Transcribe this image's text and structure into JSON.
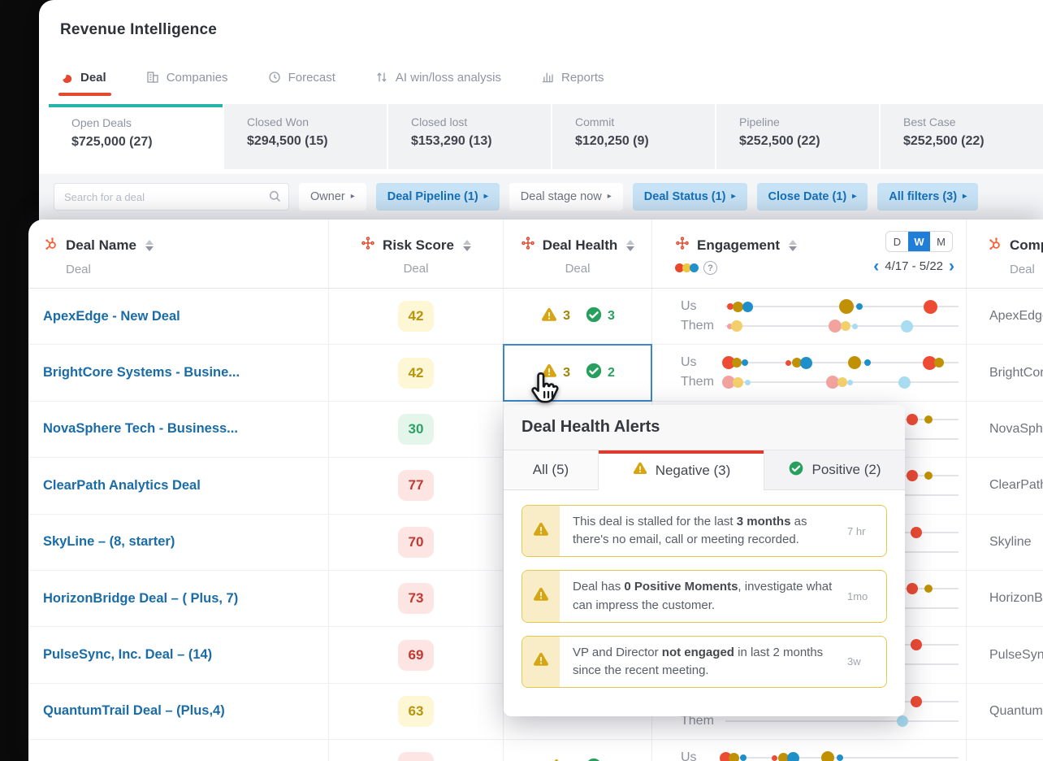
{
  "app": {
    "title": "Revenue Intelligence"
  },
  "nav": {
    "tabs": [
      {
        "label": "Deal",
        "icon": "gong-logo-icon",
        "active": true
      },
      {
        "label": "Companies",
        "icon": "companies-icon",
        "active": false
      },
      {
        "label": "Forecast",
        "icon": "forecast-icon",
        "active": false
      },
      {
        "label": "AI win/loss analysis",
        "icon": "ai-winloss-icon",
        "active": false
      },
      {
        "label": "Reports",
        "icon": "reports-icon",
        "active": false
      }
    ]
  },
  "summary": {
    "cards": [
      {
        "label": "Open Deals",
        "value": "$725,000 (27)",
        "active": true
      },
      {
        "label": "Closed Won",
        "value": "$294,500 (15)",
        "active": false
      },
      {
        "label": "Closed lost",
        "value": "$153,290 (13)",
        "active": false
      },
      {
        "label": "Commit",
        "value": "$120,250 (9)",
        "active": false
      },
      {
        "label": "Pipeline",
        "value": "$252,500 (22)",
        "active": false
      },
      {
        "label": "Best Case",
        "value": "$252,500 (22)",
        "active": false
      }
    ]
  },
  "filters": {
    "search_placeholder": "Search for a deal",
    "buttons": [
      {
        "label": "Owner",
        "active": false
      },
      {
        "label": "Deal Pipeline (1)",
        "active": true
      },
      {
        "label": "Deal stage now",
        "active": false
      },
      {
        "label": "Deal Status (1)",
        "active": true
      },
      {
        "label": "Close Date (1)",
        "active": true
      },
      {
        "label": "All filters (3)",
        "active": true
      }
    ]
  },
  "table": {
    "columns": [
      {
        "label": "Deal Name",
        "source": "Deal"
      },
      {
        "label": "Risk Score",
        "source": "Deal"
      },
      {
        "label": "Deal Health",
        "source": "Deal"
      },
      {
        "label": "Engagement",
        "source": ""
      },
      {
        "label": "Comp",
        "source": "Deal"
      }
    ],
    "engagement_header": {
      "legend_colors": [
        "#e8462e",
        "#f0c63c",
        "#2191cb"
      ],
      "toggle_options": [
        "D",
        "W",
        "M"
      ],
      "toggle_selected": "W",
      "date_range": "4/17 - 5/22"
    },
    "engagement_labels": {
      "us": "Us",
      "them": "Them"
    },
    "dot_colors": {
      "red": "#ee4b35",
      "olive": "#c09104",
      "blue": "#1f8fc9",
      "pink": "#f2a3a0",
      "yellow": "#f3cf6b",
      "lblue": "#a9dcf1"
    },
    "rows": [
      {
        "name": "ApexEdge - New Deal",
        "risk": {
          "value": "42",
          "tone": "yellow"
        },
        "health": {
          "neg": "3",
          "pos": "3",
          "selected": false
        },
        "eng": {
          "us": [
            [
              0.02,
              "red",
              8
            ],
            [
              0.055,
              "olive",
              13
            ],
            [
              0.095,
              "blue",
              13
            ],
            [
              0.52,
              "olive",
              18
            ],
            [
              0.575,
              "blue",
              8
            ],
            [
              0.88,
              "red",
              17
            ]
          ],
          "them": [
            [
              0.02,
              "pink",
              7
            ],
            [
              0.05,
              "yellow",
              14
            ],
            [
              0.47,
              "pink",
              16
            ],
            [
              0.515,
              "yellow",
              12
            ],
            [
              0.555,
              "lblue",
              7
            ],
            [
              0.78,
              "lblue",
              15
            ]
          ]
        },
        "company": "ApexEdge"
      },
      {
        "name": "BrightCore Systems - Busine...",
        "risk": {
          "value": "42",
          "tone": "yellow"
        },
        "health": {
          "neg": "3",
          "pos": "2",
          "selected": true
        },
        "eng": {
          "us": [
            [
              0.015,
              "red",
              16
            ],
            [
              0.05,
              "olive",
              12
            ],
            [
              0.085,
              "blue",
              8
            ],
            [
              0.27,
              "red",
              7
            ],
            [
              0.305,
              "olive",
              12
            ],
            [
              0.345,
              "blue",
              15
            ],
            [
              0.555,
              "olive",
              16
            ],
            [
              0.61,
              "blue",
              8
            ],
            [
              0.875,
              "red",
              17
            ],
            [
              0.915,
              "olive",
              12
            ]
          ],
          "them": [
            [
              0.015,
              "pink",
              16
            ],
            [
              0.055,
              "yellow",
              13
            ],
            [
              0.095,
              "lblue",
              7
            ],
            [
              0.46,
              "pink",
              16
            ],
            [
              0.5,
              "yellow",
              12
            ],
            [
              0.535,
              "lblue",
              7
            ],
            [
              0.77,
              "lblue",
              15
            ]
          ]
        },
        "company": "BrightCor"
      },
      {
        "name": "NovaSphere Tech - Business...",
        "risk": {
          "value": "30",
          "tone": "green"
        },
        "health": null,
        "eng": {
          "us": [
            [
              0.8,
              "red",
              14
            ],
            [
              0.87,
              "olive",
              10
            ]
          ],
          "them": []
        },
        "company": "NovaSphe"
      },
      {
        "name": "ClearPath Analytics Deal",
        "risk": {
          "value": "77",
          "tone": "red"
        },
        "health": null,
        "eng": {
          "us": [
            [
              0.8,
              "red",
              14
            ],
            [
              0.87,
              "olive",
              10
            ]
          ],
          "them": []
        },
        "company": "ClearPath"
      },
      {
        "name": "SkyLine – (8, starter)",
        "risk": {
          "value": "70",
          "tone": "red"
        },
        "health": null,
        "eng": {
          "us": [
            [
              0.82,
              "red",
              14
            ]
          ],
          "them": []
        },
        "company": "Skyline"
      },
      {
        "name": "HorizonBridge Deal – ( Plus, 7)",
        "risk": {
          "value": "73",
          "tone": "red"
        },
        "health": null,
        "eng": {
          "us": [
            [
              0.8,
              "red",
              14
            ],
            [
              0.87,
              "olive",
              10
            ]
          ],
          "them": []
        },
        "company": "HorizonB"
      },
      {
        "name": "PulseSync, Inc. Deal – (14)",
        "risk": {
          "value": "69",
          "tone": "red"
        },
        "health": null,
        "eng": {
          "us": [
            [
              0.82,
              "red",
              14
            ]
          ],
          "them": []
        },
        "company": "PulseSync"
      },
      {
        "name": "QuantumTrail Deal – (Plus,4)",
        "risk": {
          "value": "63",
          "tone": "yellow"
        },
        "health": null,
        "eng": {
          "us": [
            [
              0.82,
              "red",
              14
            ]
          ],
          "them": [
            [
              0.76,
              "lblue",
              14
            ]
          ]
        },
        "company": "Quantum"
      },
      {
        "name": "",
        "risk": {
          "value": "",
          "tone": "red"
        },
        "health": {
          "neg": "",
          "pos": "",
          "selected": false
        },
        "eng": {
          "us": [
            [
              0.0,
              "red",
              15
            ],
            [
              0.035,
              "olive",
              13
            ],
            [
              0.075,
              "blue",
              8
            ],
            [
              0.21,
              "red",
              7
            ],
            [
              0.25,
              "olive",
              13
            ],
            [
              0.29,
              "blue",
              15
            ],
            [
              0.44,
              "olive",
              16
            ],
            [
              0.49,
              "blue",
              8
            ]
          ],
          "them": []
        },
        "company": ""
      }
    ]
  },
  "popup": {
    "title": "Deal Health Alerts",
    "tabs": [
      {
        "label": "All (5)",
        "active": false
      },
      {
        "label": "Negative (3)",
        "active": true
      },
      {
        "label": "Positive (2)",
        "active": false
      }
    ],
    "alerts": [
      {
        "pre": "This deal is stalled for the last ",
        "bold": "3 months",
        "post": " as there's no email, call or meeting recorded.",
        "time": "7 hr"
      },
      {
        "pre": "Deal has ",
        "bold": "0 Positive Moments",
        "post": ", investigate what can impress the customer.",
        "time": "1mo"
      },
      {
        "pre": "VP and Director ",
        "bold": "not engaged",
        "post": " in last 2 months since the recent meeting.",
        "time": "3w"
      }
    ]
  }
}
